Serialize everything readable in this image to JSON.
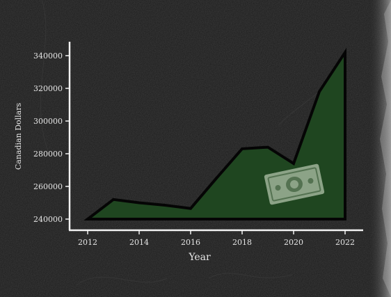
{
  "chart_data": {
    "type": "area",
    "title": "",
    "xlabel": "Year",
    "ylabel": "Canadian Dollars",
    "x": [
      2012,
      2013,
      2014,
      2015,
      2016,
      2017,
      2018,
      2019,
      2020,
      2021,
      2022
    ],
    "series": [
      {
        "values": [
          240000,
          252000,
          250000,
          248500,
          246500,
          265000,
          283000,
          284000,
          274000,
          318000,
          342000
        ]
      }
    ],
    "xticks": [
      "2012",
      "2014",
      "2016",
      "2018",
      "2020",
      "2022"
    ],
    "yticks": [
      "240000",
      "260000",
      "280000",
      "300000",
      "320000",
      "340000"
    ],
    "xlim": [
      2012,
      2022
    ],
    "ylim": [
      240000,
      340000
    ],
    "grid": false,
    "legend": "none",
    "colors": {
      "background": "#1a1a1a",
      "fill": "#1f4620",
      "line": "#050505",
      "axis": "#f2f2f2",
      "text": "#e6e6e6",
      "banknote": "#9fb49a"
    },
    "decoration_icon": "dollar-bill-icon"
  }
}
